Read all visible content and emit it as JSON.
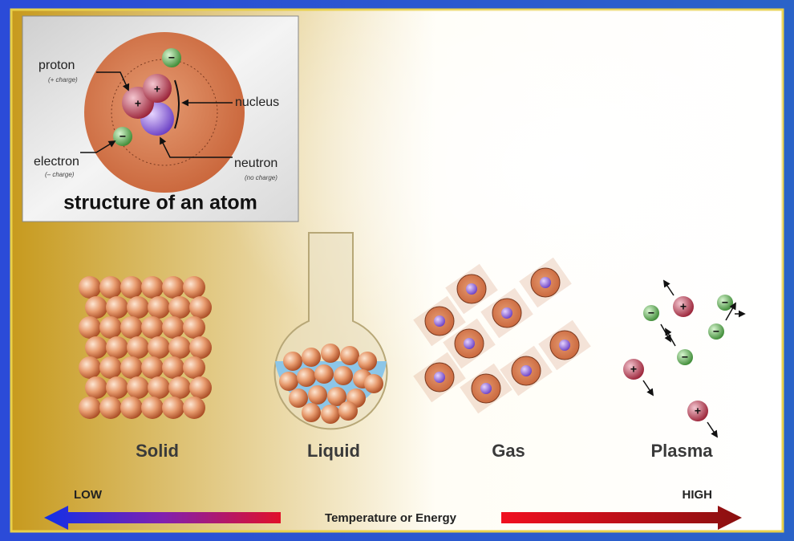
{
  "atom": {
    "title": "structure of an atom",
    "labels": {
      "proton": "proton",
      "proton_charge": "(+ charge)",
      "nucleus": "nucleus",
      "electron": "electron",
      "electron_charge": "(– charge)",
      "neutron": "neutron",
      "neutron_charge": "(no charge)"
    },
    "signs": {
      "positive": "+",
      "negative": "−"
    }
  },
  "states": [
    "Solid",
    "Liquid",
    "Gas",
    "Plasma"
  ],
  "scale": {
    "low": "LOW",
    "high": "HIGH",
    "label": "Temperature or Energy"
  }
}
